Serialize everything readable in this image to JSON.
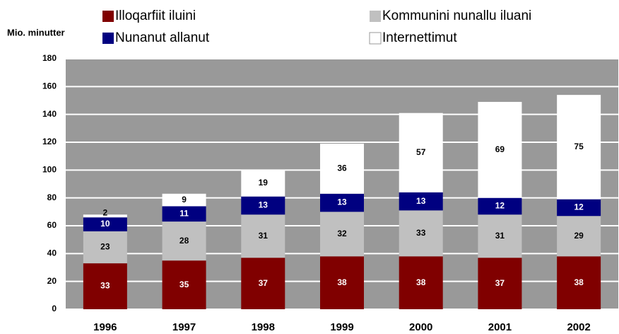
{
  "chart_data": {
    "type": "stacked_bar",
    "y_label": "Mio. minutter",
    "categories": [
      "1996",
      "1997",
      "1998",
      "1999",
      "2000",
      "2001",
      "2002"
    ],
    "series": [
      {
        "name": "Illoqarfiit iluini",
        "color": "#800000",
        "values": [
          33,
          35,
          37,
          38,
          38,
          37,
          38
        ]
      },
      {
        "name": "Kommunini nunallu iluani",
        "color": "#c0c0c0",
        "values": [
          23,
          28,
          31,
          32,
          33,
          31,
          29
        ]
      },
      {
        "name": "Nunanut allanut",
        "color": "#000080",
        "values": [
          10,
          11,
          13,
          13,
          13,
          12,
          12
        ]
      },
      {
        "name": "Internettimut",
        "color": "#ffffff",
        "values": [
          2,
          9,
          19,
          36,
          57,
          69,
          75
        ]
      }
    ],
    "ylim": [
      0,
      180
    ],
    "yticks": [
      0,
      20,
      40,
      60,
      80,
      100,
      120,
      140,
      160,
      180
    ],
    "grid": true,
    "legend": "top"
  }
}
